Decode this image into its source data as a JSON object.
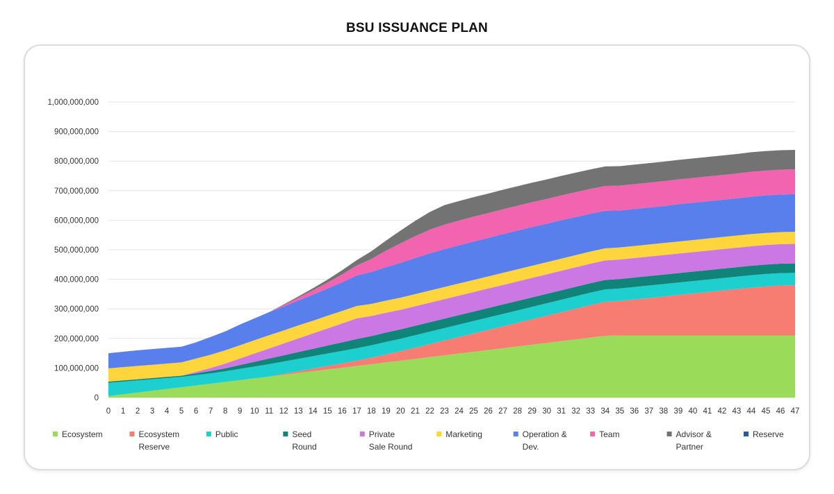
{
  "title": "BSU ISSUANCE PLAN",
  "chart_data": {
    "type": "area",
    "title": "BSU ISSUANCE PLAN",
    "stacked": true,
    "xlabel": "",
    "ylabel": "",
    "x": [
      0,
      1,
      2,
      3,
      4,
      5,
      6,
      7,
      8,
      9,
      10,
      11,
      12,
      13,
      14,
      15,
      16,
      17,
      18,
      19,
      20,
      21,
      22,
      23,
      24,
      25,
      26,
      27,
      28,
      29,
      30,
      31,
      32,
      33,
      34,
      35,
      36,
      37,
      38,
      39,
      40,
      41,
      42,
      43,
      44,
      45,
      46,
      47
    ],
    "ylim": [
      0,
      1000000000
    ],
    "yticks": [
      0,
      100000000,
      200000000,
      300000000,
      400000000,
      500000000,
      600000000,
      700000000,
      800000000,
      900000000,
      1000000000
    ],
    "ytick_labels": [
      "0",
      "100,000,000",
      "200,000,000",
      "300,000,000",
      "400,000,000",
      "500,000,000",
      "600,000,000",
      "700,000,000",
      "800,000,000",
      "900,000,000",
      "1,000,000,000"
    ],
    "grid": true,
    "legend_position": "bottom",
    "series": [
      {
        "name": "Ecosystem",
        "color": "#9ADB5A",
        "values": [
          5000000,
          11000000,
          17000000,
          23000000,
          29000000,
          35000000,
          41000000,
          47000000,
          53000000,
          59000000,
          65000000,
          71000000,
          77000000,
          83000000,
          89000000,
          95000000,
          101000000,
          107000000,
          113000000,
          119000000,
          125000000,
          131000000,
          137000000,
          143000000,
          149000000,
          155000000,
          161000000,
          167000000,
          173000000,
          179000000,
          185000000,
          191000000,
          197000000,
          203000000,
          209000000,
          210000000,
          210000000,
          210000000,
          210000000,
          210000000,
          210000000,
          210000000,
          210000000,
          210000000,
          210000000,
          210000000,
          210000000,
          210000000
        ]
      },
      {
        "name": "Ecosystem Reserve",
        "color": "#F77D72",
        "values": [
          0,
          0,
          0,
          0,
          0,
          0,
          0,
          0,
          0,
          0,
          0,
          0,
          3000000,
          6000000,
          9000000,
          12000000,
          15000000,
          18000000,
          22000000,
          27000000,
          32000000,
          38000000,
          44000000,
          50000000,
          56000000,
          62000000,
          68000000,
          74000000,
          80000000,
          86000000,
          92000000,
          98000000,
          104000000,
          110000000,
          115000000,
          117000000,
          122000000,
          127000000,
          132000000,
          137000000,
          142000000,
          147000000,
          152000000,
          157000000,
          162000000,
          166000000,
          169000000,
          170000000
        ]
      },
      {
        "name": "Public",
        "color": "#1ECFCF",
        "values": [
          45000000,
          43000000,
          41000000,
          39000000,
          37000000,
          35000000,
          35000000,
          35000000,
          36000000,
          38000000,
          40000000,
          42000000,
          42000000,
          42000000,
          42000000,
          42000000,
          42000000,
          42000000,
          42000000,
          42000000,
          42000000,
          42000000,
          42000000,
          42000000,
          42000000,
          42000000,
          42000000,
          42000000,
          42000000,
          42000000,
          42000000,
          42000000,
          42000000,
          42000000,
          42000000,
          42000000,
          42000000,
          42000000,
          42000000,
          42000000,
          42000000,
          42000000,
          42000000,
          42000000,
          42000000,
          42000000,
          42000000,
          42000000
        ]
      },
      {
        "name": "Seed Round",
        "color": "#11847A",
        "values": [
          4000000,
          4000000,
          4000000,
          4000000,
          4000000,
          4000000,
          6000000,
          8000000,
          10000000,
          13000000,
          16000000,
          19000000,
          21000000,
          23000000,
          25000000,
          27000000,
          29000000,
          31000000,
          31000000,
          32000000,
          32000000,
          32000000,
          32000000,
          32000000,
          32000000,
          32000000,
          32000000,
          32000000,
          32000000,
          32000000,
          32000000,
          32000000,
          32000000,
          32000000,
          32000000,
          32000000,
          32000000,
          32000000,
          32000000,
          32000000,
          32000000,
          32000000,
          32000000,
          32000000,
          32000000,
          32000000,
          32000000,
          32000000
        ]
      },
      {
        "name": "Private Sale Round",
        "color": "#CB78E4",
        "values": [
          0,
          0,
          0,
          0,
          0,
          0,
          5000000,
          10000000,
          16000000,
          22000000,
          28000000,
          34000000,
          40000000,
          46000000,
          52000000,
          58000000,
          64000000,
          70000000,
          68000000,
          67000000,
          66000000,
          66000000,
          66000000,
          66000000,
          66000000,
          66000000,
          66000000,
          66000000,
          66000000,
          66000000,
          66000000,
          66000000,
          66000000,
          66000000,
          66000000,
          66000000,
          66000000,
          66000000,
          66000000,
          66000000,
          66000000,
          66000000,
          66000000,
          66000000,
          66000000,
          66000000,
          66000000,
          66000000
        ]
      },
      {
        "name": "Marketing",
        "color": "#FFD53D",
        "values": [
          45000000,
          45000000,
          45000000,
          45000000,
          45000000,
          45000000,
          45000000,
          45000000,
          45000000,
          45000000,
          45000000,
          45000000,
          44000000,
          44000000,
          43000000,
          43000000,
          42000000,
          42000000,
          41000000,
          41000000,
          41000000,
          41000000,
          41000000,
          41000000,
          41000000,
          41000000,
          41000000,
          41000000,
          41000000,
          41000000,
          41000000,
          41000000,
          41000000,
          41000000,
          41000000,
          41000000,
          41000000,
          41000000,
          41000000,
          41000000,
          41000000,
          41000000,
          41000000,
          41000000,
          41000000,
          41000000,
          41000000,
          41000000
        ]
      },
      {
        "name": "Operation & Dev.",
        "color": "#587FEC",
        "values": [
          51000000,
          52000000,
          53000000,
          53000000,
          53000000,
          53000000,
          55000000,
          60000000,
          64000000,
          70000000,
          74000000,
          78000000,
          81000000,
          84000000,
          88000000,
          92000000,
          97000000,
          103000000,
          108000000,
          113000000,
          118000000,
          122000000,
          126000000,
          128000000,
          129000000,
          130000000,
          130000000,
          131000000,
          131000000,
          131000000,
          130000000,
          130000000,
          129000000,
          128000000,
          127000000,
          125000000,
          125000000,
          125000000,
          125000000,
          126000000,
          126000000,
          126000000,
          126000000,
          126000000,
          127000000,
          127000000,
          127000000,
          127000000
        ]
      },
      {
        "name": "Team",
        "color": "#F263B0",
        "values": [
          0,
          0,
          0,
          0,
          0,
          0,
          0,
          0,
          0,
          0,
          0,
          0,
          5000000,
          10000000,
          15000000,
          20000000,
          27000000,
          34000000,
          44000000,
          56000000,
          66000000,
          74000000,
          80000000,
          83000000,
          84000000,
          84000000,
          84000000,
          84000000,
          84000000,
          84000000,
          84000000,
          84000000,
          84000000,
          84000000,
          84000000,
          84000000,
          84000000,
          84000000,
          84000000,
          84000000,
          84000000,
          84000000,
          84000000,
          84000000,
          84000000,
          84000000,
          84000000,
          84000000
        ]
      },
      {
        "name": "Advisor & Partner",
        "color": "#737373",
        "values": [
          0,
          0,
          0,
          0,
          0,
          0,
          0,
          0,
          0,
          0,
          0,
          0,
          2000000,
          4000000,
          7000000,
          10000000,
          14000000,
          18000000,
          26000000,
          34000000,
          43000000,
          52000000,
          60000000,
          66000000,
          66000000,
          66000000,
          66000000,
          66000000,
          66000000,
          66000000,
          66000000,
          66000000,
          66000000,
          66000000,
          66000000,
          66000000,
          66000000,
          66000000,
          66000000,
          66000000,
          66000000,
          66000000,
          66000000,
          66000000,
          66000000,
          66000000,
          66000000,
          66000000
        ]
      },
      {
        "name": "Reserve",
        "color": "#205C9E",
        "values": [
          0,
          0,
          0,
          0,
          0,
          0,
          0,
          0,
          0,
          0,
          0,
          0,
          0,
          0,
          0,
          0,
          0,
          0,
          0,
          0,
          0,
          0,
          0,
          0,
          0,
          0,
          0,
          0,
          0,
          0,
          0,
          0,
          0,
          0,
          0,
          0,
          0,
          0,
          0,
          0,
          0,
          0,
          0,
          0,
          0,
          0,
          0,
          0
        ]
      }
    ],
    "legend": [
      {
        "lines": [
          "Ecosystem"
        ]
      },
      {
        "lines": [
          "Ecosystem",
          "Reserve"
        ]
      },
      {
        "lines": [
          "Public"
        ]
      },
      {
        "lines": [
          "Seed",
          "Round"
        ]
      },
      {
        "lines": [
          "Private",
          "Sale Round"
        ]
      },
      {
        "lines": [
          "Marketing"
        ]
      },
      {
        "lines": [
          "Operation &",
          "Dev."
        ]
      },
      {
        "lines": [
          "Team"
        ]
      },
      {
        "lines": [
          "Advisor &",
          "Partner"
        ]
      },
      {
        "lines": [
          "Reserve"
        ]
      }
    ]
  }
}
